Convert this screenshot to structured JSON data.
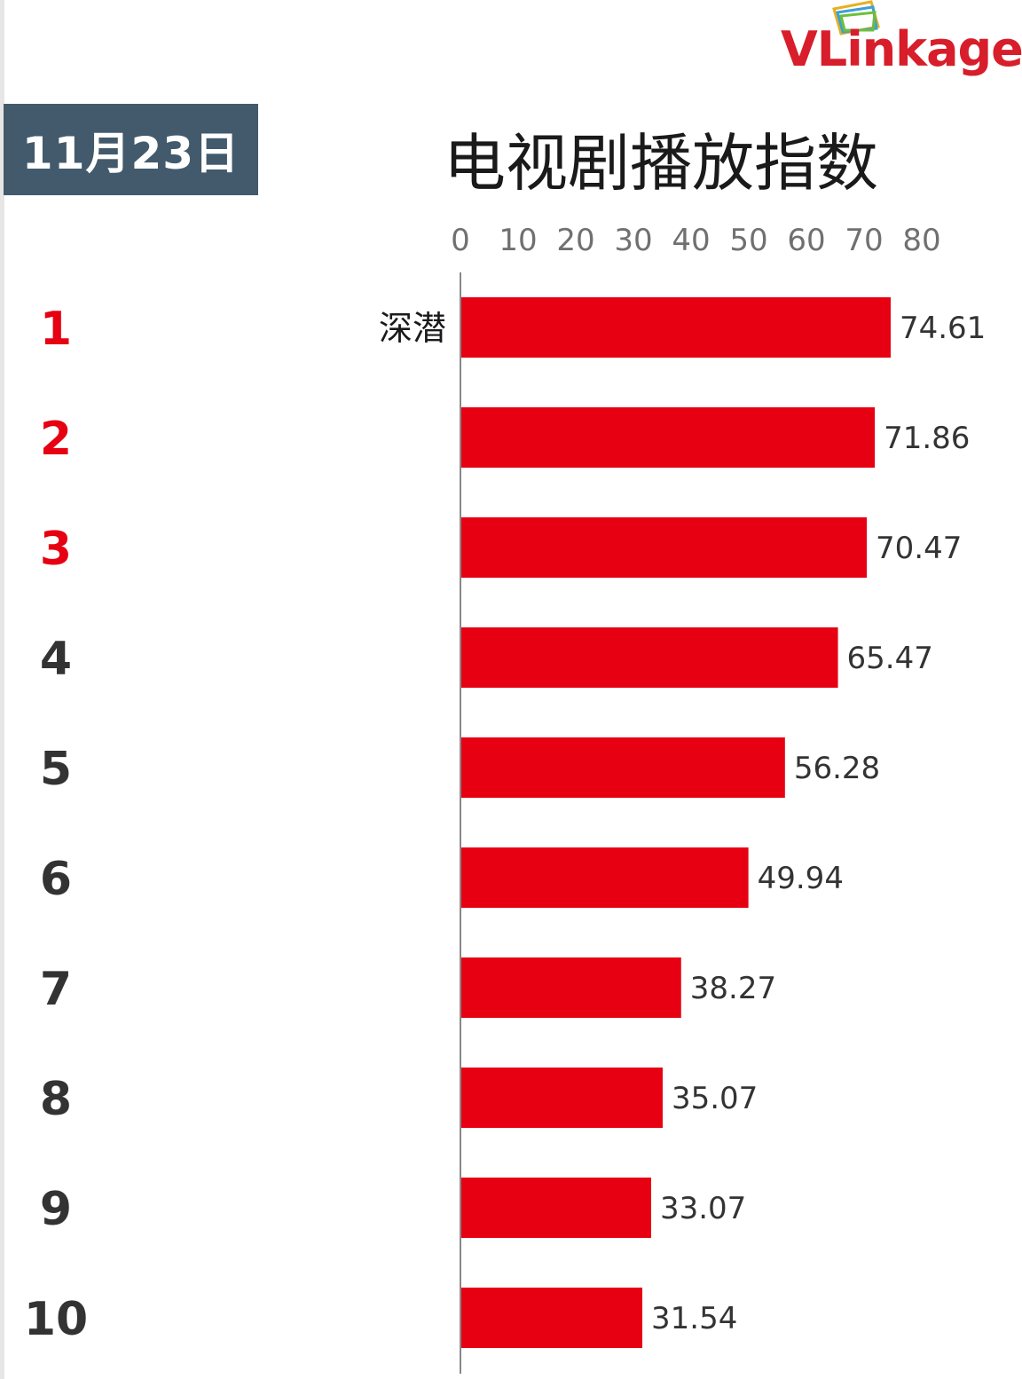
{
  "date_label": "11月23日",
  "logo": {
    "text": "VLinkage",
    "color": "#d71e2a"
  },
  "colors": {
    "bar": "#e60012",
    "top_rank": "#e60012",
    "rank": "#333333",
    "axis": "#888888"
  },
  "chart_data": {
    "type": "bar",
    "orientation": "horizontal",
    "title": "电视剧播放指数",
    "xlabel": "",
    "ylabel": "",
    "xlim": [
      0,
      80
    ],
    "x_ticks": [
      0,
      10,
      20,
      30,
      40,
      50,
      60,
      70,
      80
    ],
    "grid": false,
    "legend": "none",
    "ranks": [
      "1",
      "2",
      "3",
      "4",
      "5",
      "6",
      "7",
      "8",
      "9",
      "10"
    ],
    "categories": [
      "深潜",
      "",
      "",
      "",
      "",
      "",
      "",
      "",
      "",
      ""
    ],
    "values": [
      74.61,
      71.86,
      70.47,
      65.47,
      56.28,
      49.94,
      38.27,
      35.07,
      33.07,
      31.54
    ],
    "value_labels": [
      "74.61",
      "71.86",
      "70.47",
      "65.47",
      "56.28",
      "49.94",
      "38.27",
      "35.07",
      "33.07",
      "31.54"
    ]
  }
}
